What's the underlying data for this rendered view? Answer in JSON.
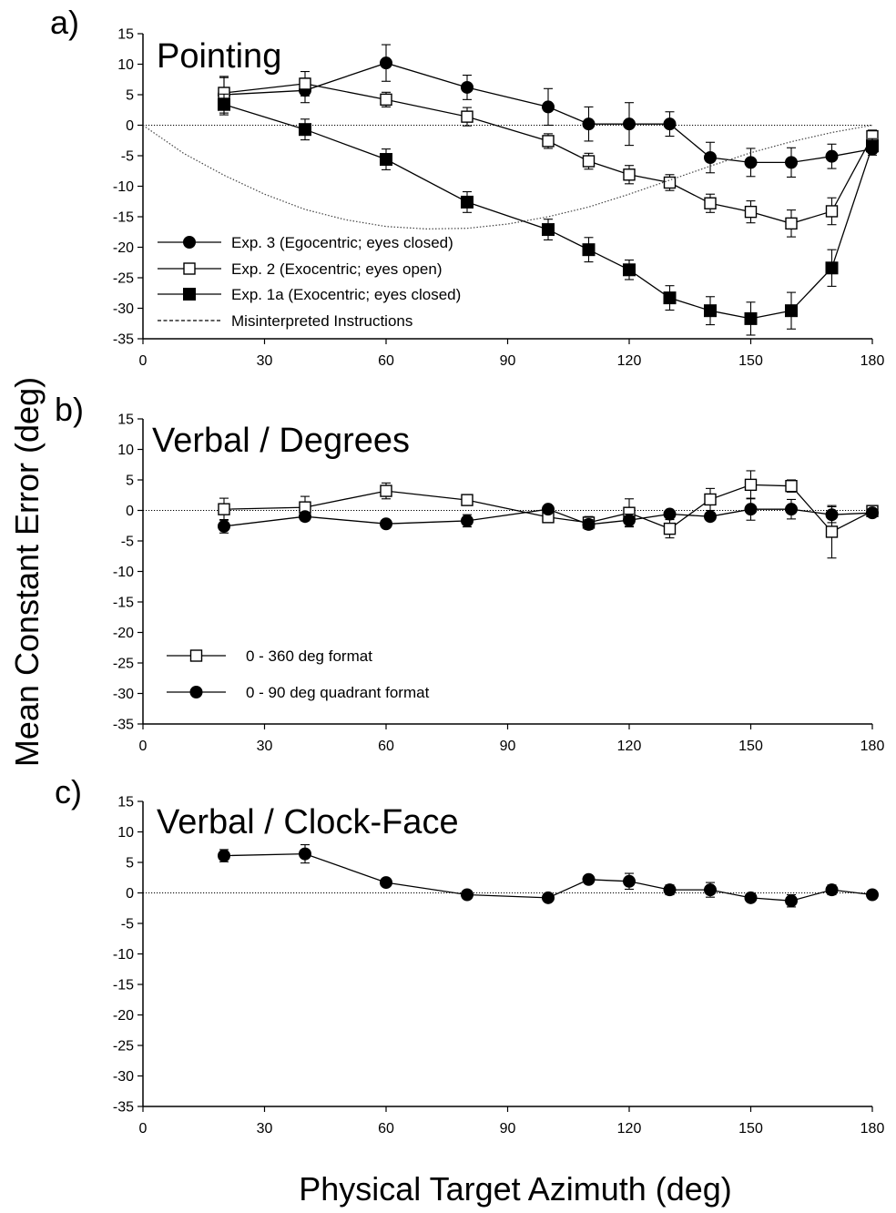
{
  "figure": {
    "ylabel": "Mean Constant Error (deg)",
    "xlabel": "Physical Target Azimuth (deg)"
  },
  "chart_data": [
    {
      "type": "line",
      "panel_label": "a)",
      "title": "Pointing",
      "xlim": [
        0,
        180
      ],
      "ylim": [
        -35,
        15
      ],
      "x_ticks": [
        0,
        30,
        60,
        90,
        120,
        150,
        180
      ],
      "y_ticks": [
        15,
        10,
        5,
        0,
        -5,
        -10,
        -15,
        -20,
        -25,
        -30,
        -35
      ],
      "zero_reference_line": true,
      "legend_position": "bottom-left",
      "series": [
        {
          "name": "Exp. 3 (Egocentric; eyes closed)",
          "marker": "filled-circle",
          "x": [
            20,
            40,
            60,
            80,
            100,
            110,
            120,
            130,
            140,
            150,
            160,
            170,
            180
          ],
          "y": [
            5,
            5.7,
            10.2,
            6.2,
            3,
            0.2,
            0.2,
            0.2,
            -5.3,
            -6.1,
            -6.1,
            -5.1,
            -3.9
          ],
          "err": [
            3,
            2,
            3,
            2,
            3,
            2.8,
            3.5,
            2,
            2.5,
            2.3,
            2.4,
            2,
            1
          ]
        },
        {
          "name": "Exp. 2 (Exocentric; eyes open)",
          "marker": "open-square",
          "x": [
            20,
            40,
            60,
            80,
            100,
            110,
            120,
            130,
            140,
            150,
            160,
            170,
            180
          ],
          "y": [
            5.3,
            6.8,
            4.2,
            1.4,
            -2.6,
            -5.9,
            -8.1,
            -9.4,
            -12.8,
            -14.2,
            -16.1,
            -14.1,
            -1.8
          ],
          "err": [
            2.5,
            2,
            1.2,
            1.5,
            1.2,
            1.3,
            1.5,
            1.3,
            1.5,
            1.8,
            2.2,
            2.2,
            1
          ]
        },
        {
          "name": "Exp. 1a (Exocentric; eyes closed)",
          "marker": "filled-square",
          "x": [
            20,
            40,
            60,
            80,
            100,
            110,
            120,
            130,
            140,
            150,
            160,
            170,
            180
          ],
          "y": [
            3.4,
            -0.7,
            -5.6,
            -12.6,
            -17.1,
            -20.4,
            -23.7,
            -28.3,
            -30.4,
            -31.7,
            -30.4,
            -23.4,
            -3.4
          ],
          "err": [
            1.7,
            1.7,
            1.7,
            1.7,
            1.7,
            2,
            1.6,
            2,
            2.3,
            2.7,
            3,
            3,
            1.2
          ]
        },
        {
          "name": "Misinterpreted Instructions",
          "marker": "none",
          "line_style": "dotted",
          "x": [
            0,
            10,
            20,
            30,
            40,
            50,
            60,
            70,
            80,
            90,
            100,
            110,
            120,
            130,
            140,
            150,
            160,
            170,
            180
          ],
          "y": [
            0,
            -4.6,
            -8.2,
            -11.3,
            -13.8,
            -15.5,
            -16.6,
            -17,
            -16.9,
            -16.2,
            -15,
            -13.4,
            -11.3,
            -9,
            -6.7,
            -4.5,
            -2.7,
            -1.2,
            0
          ]
        }
      ]
    },
    {
      "type": "line",
      "panel_label": "b)",
      "title": "Verbal / Degrees",
      "xlim": [
        0,
        180
      ],
      "ylim": [
        -35,
        15
      ],
      "x_ticks": [
        0,
        30,
        60,
        90,
        120,
        150,
        180
      ],
      "y_ticks": [
        15,
        10,
        5,
        0,
        -5,
        -10,
        -15,
        -20,
        -25,
        -30,
        -35
      ],
      "zero_reference_line": true,
      "legend_position": "bottom-left",
      "series": [
        {
          "name": "0 - 360 deg format",
          "marker": "open-square",
          "x": [
            20,
            40,
            60,
            80,
            100,
            110,
            120,
            130,
            140,
            150,
            160,
            170,
            180
          ],
          "y": [
            0.2,
            0.5,
            3.2,
            1.7,
            -1.1,
            -2,
            -0.4,
            -3,
            1.8,
            4.2,
            4,
            -3.5,
            -0.1
          ],
          "err": [
            1.8,
            1.8,
            1.3,
            0.7,
            0.8,
            1,
            2.3,
            1.5,
            1.8,
            2.3,
            1,
            4.3,
            0.6
          ]
        },
        {
          "name": "0 - 90 deg quadrant format",
          "marker": "filled-circle",
          "x": [
            20,
            40,
            60,
            80,
            100,
            110,
            120,
            130,
            140,
            150,
            160,
            170,
            180
          ],
          "y": [
            -2.6,
            -1,
            -2.2,
            -1.7,
            0.2,
            -2.3,
            -1.6,
            -0.6,
            -1,
            0.2,
            0.2,
            -0.7,
            -0.4
          ],
          "err": [
            1.1,
            0.7,
            0.5,
            1,
            0.5,
            0.8,
            1,
            0.4,
            0.6,
            1.8,
            1.6,
            1.3,
            0.4
          ]
        }
      ]
    },
    {
      "type": "line",
      "panel_label": "c)",
      "title": "Verbal / Clock-Face",
      "xlim": [
        0,
        180
      ],
      "ylim": [
        -35,
        15
      ],
      "x_ticks": [
        0,
        30,
        60,
        90,
        120,
        150,
        180
      ],
      "y_ticks": [
        15,
        10,
        5,
        0,
        -5,
        -10,
        -15,
        -20,
        -25,
        -30,
        -35
      ],
      "zero_reference_line": true,
      "series": [
        {
          "marker": "filled-circle",
          "x": [
            20,
            40,
            60,
            80,
            100,
            110,
            120,
            130,
            140,
            150,
            160,
            170,
            180
          ],
          "y": [
            6.1,
            6.4,
            1.7,
            -0.3,
            -0.8,
            2.2,
            1.9,
            0.5,
            0.5,
            -0.8,
            -1.3,
            0.5,
            -0.3
          ],
          "err": [
            1,
            1.5,
            0.5,
            0.5,
            0.5,
            0.5,
            1.3,
            0.8,
            1.2,
            0.5,
            1,
            0.8,
            0.5
          ]
        }
      ]
    }
  ]
}
